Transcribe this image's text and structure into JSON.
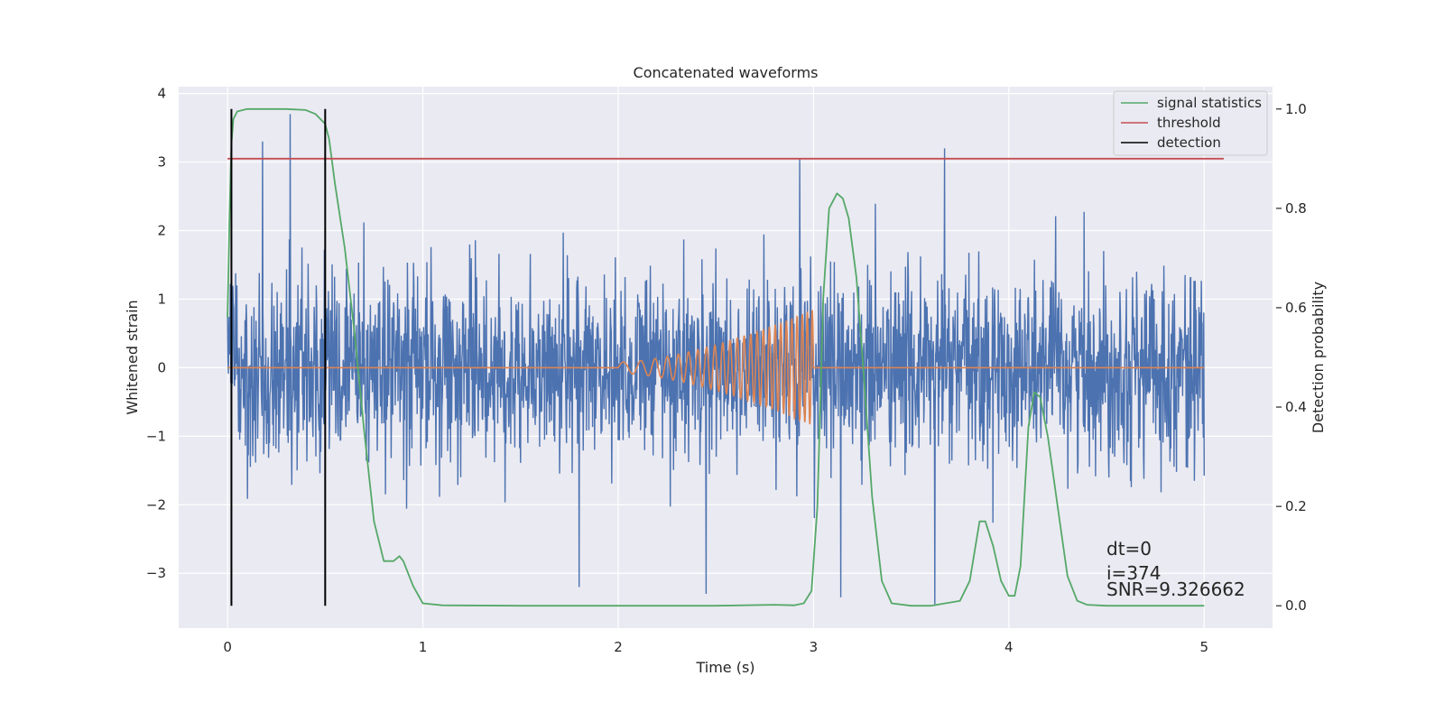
{
  "chart_data": {
    "type": "line",
    "title": "Concatenated waveforms",
    "xlabel": "Time (s)",
    "ylabel": "Whitened strain",
    "y2label": "Detection probability",
    "xlim": [
      -0.25,
      5.35
    ],
    "ylim": [
      -3.8,
      4.1
    ],
    "y2lim": [
      -0.045,
      1.045
    ],
    "x_ticks": [
      0,
      1,
      2,
      3,
      4,
      5
    ],
    "y_ticks": [
      -3,
      -2,
      -1,
      0,
      1,
      2,
      3,
      4
    ],
    "y2_ticks": [
      "0.0",
      "0.2",
      "0.4",
      "0.6",
      "0.8",
      "1.0"
    ],
    "tick_labels": {
      "x": [
        "0",
        "1",
        "2",
        "3",
        "4",
        "5"
      ],
      "y": [
        "−3",
        "−2",
        "−1",
        "0",
        "1",
        "2",
        "3",
        "4"
      ],
      "y2": [
        "0.0",
        "0.2",
        "0.4",
        "0.6",
        "0.8",
        "1.0"
      ]
    },
    "grid": true,
    "legend_position": "top-right",
    "background": "#eaeaf2",
    "series": [
      {
        "key": "strain",
        "axis": "left",
        "color": "#4c72b0",
        "kind": "noise",
        "x_range": [
          0,
          5
        ],
        "sigma": 0.68,
        "peaks": [
          [
            0.32,
            3.7
          ],
          [
            0.18,
            3.3
          ],
          [
            2.93,
            3.05
          ],
          [
            3.67,
            3.2
          ],
          [
            3.62,
            -3.45
          ],
          [
            1.8,
            -3.2
          ],
          [
            2.45,
            -3.3
          ],
          [
            3.14,
            -3.35
          ]
        ]
      },
      {
        "key": "injection",
        "axis": "left",
        "color": "#dd8452",
        "kind": "chirp",
        "x": [
          0,
          2.0,
          3.0,
          5.0
        ],
        "chirp_start": 2.0,
        "chirp_end": 3.0,
        "amp_start": 0.08,
        "amp_end": 0.85,
        "freq_start": 9,
        "freq_end": 40
      },
      {
        "name": "signal statistics",
        "axis": "right",
        "color": "#55a868",
        "x": [
          0,
          0.01,
          0.02,
          0.03,
          0.05,
          0.1,
          0.2,
          0.3,
          0.4,
          0.45,
          0.5,
          0.52,
          0.55,
          0.6,
          0.65,
          0.7,
          0.75,
          0.8,
          0.85,
          0.88,
          0.9,
          0.95,
          1.0,
          1.1,
          1.5,
          2.0,
          2.5,
          2.8,
          2.9,
          2.95,
          2.99,
          3.02,
          3.05,
          3.08,
          3.12,
          3.15,
          3.18,
          3.22,
          3.26,
          3.3,
          3.35,
          3.4,
          3.5,
          3.6,
          3.75,
          3.8,
          3.85,
          3.88,
          3.92,
          3.96,
          4.0,
          4.03,
          4.06,
          4.1,
          4.13,
          4.16,
          4.2,
          4.25,
          4.3,
          4.35,
          4.4,
          4.5,
          4.7,
          5.0
        ],
        "values": [
          0.58,
          0.78,
          0.93,
          0.98,
          0.995,
          1.0,
          1.0,
          1.0,
          0.998,
          0.99,
          0.97,
          0.94,
          0.85,
          0.72,
          0.55,
          0.35,
          0.17,
          0.09,
          0.09,
          0.1,
          0.09,
          0.04,
          0.005,
          0.001,
          0.0,
          0.0,
          0.0,
          0.002,
          0.001,
          0.005,
          0.03,
          0.2,
          0.62,
          0.8,
          0.83,
          0.82,
          0.78,
          0.66,
          0.45,
          0.22,
          0.05,
          0.005,
          0.0,
          0.0,
          0.01,
          0.05,
          0.17,
          0.17,
          0.12,
          0.05,
          0.02,
          0.02,
          0.08,
          0.36,
          0.43,
          0.42,
          0.34,
          0.2,
          0.06,
          0.01,
          0.002,
          0.0,
          0.0,
          0.0
        ]
      },
      {
        "name": "threshold",
        "axis": "right",
        "color": "#c44e52",
        "x": [
          0,
          5.1
        ],
        "values": [
          0.9,
          0.9
        ]
      }
    ],
    "detections": {
      "name": "detection",
      "color": "#000000",
      "x": [
        0.02,
        0.5
      ],
      "y_span": [
        0.0,
        1.0
      ]
    },
    "legend": [
      {
        "label": "signal statistics",
        "color": "#55a868"
      },
      {
        "label": "threshold",
        "color": "#c44e52"
      },
      {
        "label": "detection",
        "color": "#000000"
      }
    ],
    "annotations": [
      "dt=0",
      "i=374",
      "SNR=9.326662"
    ]
  }
}
